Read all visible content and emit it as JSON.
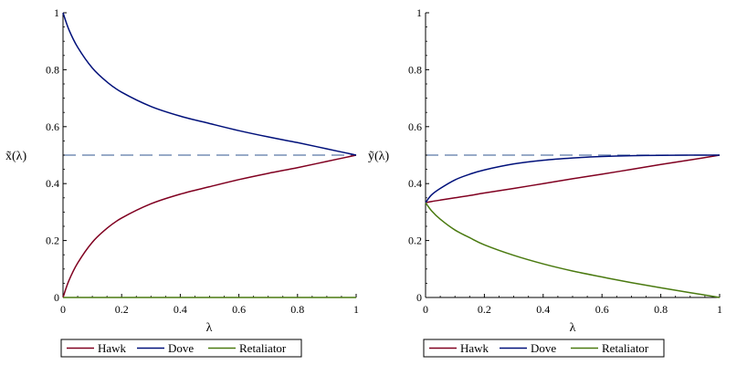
{
  "charts": [
    {
      "ylabel": "x̃(λ)",
      "xlabel": "λ",
      "xticks": [
        "0",
        "0.2",
        "0.4",
        "0.6",
        "0.8",
        "1"
      ],
      "yticks": [
        "0",
        "0.2",
        "0.4",
        "0.6",
        "0.8",
        "1"
      ]
    },
    {
      "ylabel": "ỹ(λ)",
      "xlabel": "λ",
      "xticks": [
        "0",
        "0.2",
        "0.4",
        "0.6",
        "0.8",
        "1"
      ],
      "yticks": [
        "0",
        "0.2",
        "0.4",
        "0.6",
        "0.8",
        "1"
      ]
    }
  ],
  "legend": [
    "Hawk",
    "Dove",
    "Retaliator"
  ],
  "chart_data": [
    {
      "type": "line",
      "xlabel": "λ",
      "ylabel": "x̃(λ)",
      "xlim": [
        0,
        1
      ],
      "ylim": [
        0,
        1
      ],
      "reference_line": {
        "y": 0.5,
        "style": "dashed",
        "color": "#5b78a8"
      },
      "x": [
        0,
        0.02,
        0.05,
        0.1,
        0.15,
        0.2,
        0.3,
        0.4,
        0.5,
        0.6,
        0.7,
        0.8,
        0.9,
        1.0
      ],
      "series": [
        {
          "name": "Hawk",
          "color": "#800020",
          "values": [
            0,
            0.059,
            0.121,
            0.194,
            0.243,
            0.279,
            0.329,
            0.363,
            0.389,
            0.414,
            0.436,
            0.456,
            0.478,
            0.5
          ]
        },
        {
          "name": "Dove",
          "color": "#00107a",
          "values": [
            1,
            0.941,
            0.879,
            0.806,
            0.757,
            0.721,
            0.671,
            0.637,
            0.611,
            0.586,
            0.564,
            0.544,
            0.522,
            0.5
          ]
        },
        {
          "name": "Retaliator",
          "color": "#4a7a10",
          "values": [
            0,
            0,
            0,
            0,
            0,
            0,
            0,
            0,
            0,
            0,
            0,
            0,
            0,
            0
          ]
        }
      ]
    },
    {
      "type": "line",
      "xlabel": "λ",
      "ylabel": "ỹ(λ)",
      "xlim": [
        0,
        1
      ],
      "ylim": [
        0,
        1
      ],
      "reference_line": {
        "y": 0.5,
        "style": "dashed",
        "color": "#5b78a8"
      },
      "x": [
        0,
        0.02,
        0.05,
        0.1,
        0.15,
        0.2,
        0.3,
        0.4,
        0.5,
        0.6,
        0.7,
        0.8,
        0.9,
        1.0
      ],
      "series": [
        {
          "name": "Hawk",
          "color": "#800020",
          "values": [
            0.333,
            0.337,
            0.342,
            0.35,
            0.358,
            0.367,
            0.383,
            0.4,
            0.417,
            0.433,
            0.45,
            0.467,
            0.483,
            0.5
          ]
        },
        {
          "name": "Dove",
          "color": "#00107a",
          "values": [
            0.333,
            0.36,
            0.383,
            0.413,
            0.433,
            0.448,
            0.469,
            0.482,
            0.49,
            0.495,
            0.498,
            0.499,
            0.5,
            0.5
          ]
        },
        {
          "name": "Retaliator",
          "color": "#4a7a10",
          "values": [
            0.333,
            0.305,
            0.275,
            0.237,
            0.21,
            0.185,
            0.148,
            0.118,
            0.093,
            0.072,
            0.052,
            0.034,
            0.017,
            0
          ]
        }
      ]
    }
  ]
}
